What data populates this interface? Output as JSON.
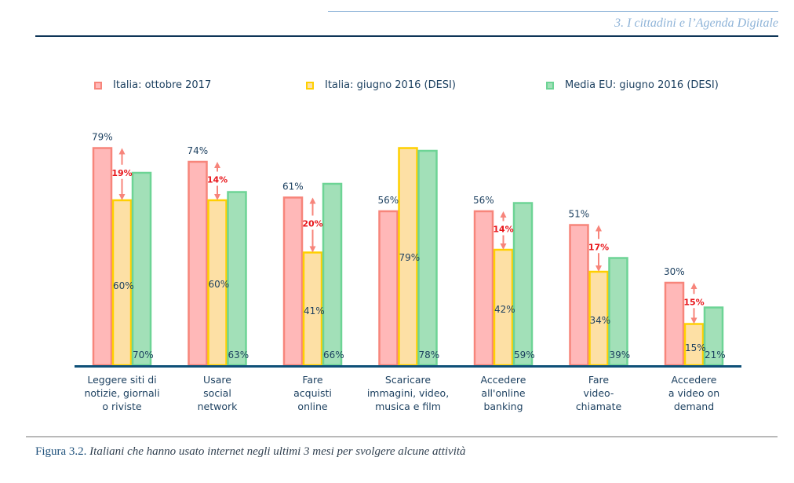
{
  "header": {
    "running_head": "3. I cittadini e l’Agenda Digitale"
  },
  "caption": {
    "figure_label": "Figura 3.2.",
    "text": "Italiani che hanno usato internet negli ultimi 3 mesi per svolgere alcune attività"
  },
  "colors": {
    "italia_2017_fill": "#ffb8b8",
    "italia_2017_stroke": "#f7857b",
    "italia_2016_fill": "#fde0a5",
    "italia_2016_stroke": "#ffd000",
    "eu_2016_fill": "#a2e0b8",
    "eu_2016_stroke": "#6dd495",
    "axis": "#0e5078",
    "label_text": "#1b3f5f",
    "diff_text": "#e8161b",
    "diff_arrow": "#f7857b"
  },
  "chart_data": {
    "type": "bar",
    "title": "",
    "xlabel": "",
    "ylabel": "",
    "ylim": [
      0,
      100
    ],
    "grid": false,
    "legend_position": "top",
    "categories": [
      [
        "Leggere siti di",
        "notizie, giornali",
        "o riviste"
      ],
      [
        "Usare",
        "social",
        "network"
      ],
      [
        "Fare",
        "acquisti",
        "online"
      ],
      [
        "Scaricare",
        "immagini, video,",
        "musica e film"
      ],
      [
        "Accedere",
        "all'online",
        "banking"
      ],
      [
        "Fare",
        "video-",
        "chiamate"
      ],
      [
        "Accedere",
        "a video on",
        "demand"
      ]
    ],
    "series": [
      {
        "name": "Italia: ottobre 2017",
        "values": [
          79,
          74,
          61,
          56,
          56,
          51,
          30
        ],
        "labels": [
          "79%",
          "74%",
          "61%",
          "56%",
          "56%",
          "51%",
          "30%"
        ]
      },
      {
        "name": "Italia: giugno 2016 (DESI)",
        "values": [
          60,
          60,
          41,
          79,
          42,
          34,
          15
        ],
        "labels": [
          "60%",
          "60%",
          "41%",
          "79%",
          "42%",
          "34%",
          "15%"
        ]
      },
      {
        "name": "Media EU: giugno 2016 (DESI)",
        "values": [
          70,
          63,
          66,
          78,
          59,
          39,
          21
        ],
        "labels": [
          "70%",
          "63%",
          "66%",
          "78%",
          "59%",
          "39%",
          "21%"
        ]
      }
    ],
    "annotations": [
      {
        "category_index": 0,
        "text": "19%"
      },
      {
        "category_index": 1,
        "text": "14%"
      },
      {
        "category_index": 2,
        "text": "20%"
      },
      {
        "category_index": 4,
        "text": "14%"
      },
      {
        "category_index": 5,
        "text": "17%"
      },
      {
        "category_index": 6,
        "text": "15%"
      }
    ]
  }
}
